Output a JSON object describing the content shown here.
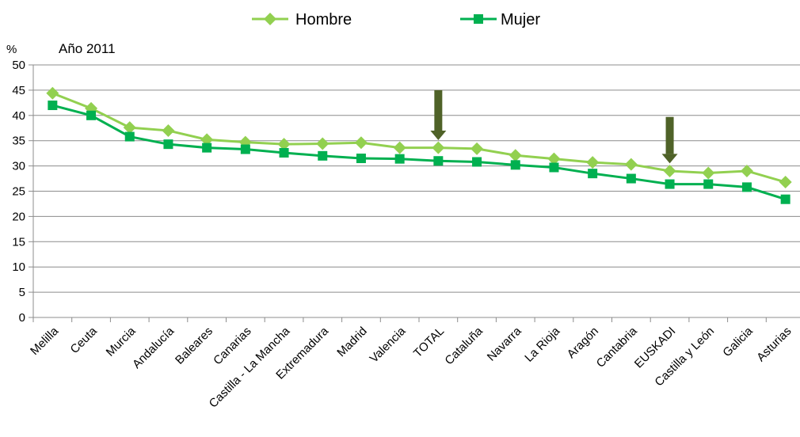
{
  "chart_data": {
    "type": "line",
    "subtitle": "Año 2011",
    "y_unit_label": "%",
    "ylim": [
      0,
      50
    ],
    "y_ticks": [
      0,
      5,
      10,
      15,
      20,
      25,
      30,
      35,
      40,
      45,
      50
    ],
    "grid": "horizontal",
    "legend_position": "top",
    "categories": [
      "Melilla",
      "Ceuta",
      "Murcia",
      "Andalucía",
      "Baleares",
      "Canarias",
      "Castilla - La Mancha",
      "Extremadura",
      "Madrid",
      "Valencia",
      "TOTAL",
      "Cataluña",
      "Navarra",
      "La Rioja",
      "Aragón",
      "Cantabria",
      "EUSKADI",
      "Castilla y León",
      "Galicia",
      "Asturias"
    ],
    "series": [
      {
        "name": "Hombre",
        "color": "#92d050",
        "marker": "diamond",
        "values": [
          44.4,
          41.4,
          37.6,
          37.0,
          35.2,
          34.7,
          34.3,
          34.4,
          34.6,
          33.6,
          33.6,
          33.4,
          32.1,
          31.4,
          30.7,
          30.3,
          29.0,
          28.6,
          29.0,
          26.8
        ]
      },
      {
        "name": "Mujer",
        "color": "#00b050",
        "marker": "square",
        "values": [
          42.0,
          40.0,
          35.8,
          34.3,
          33.6,
          33.3,
          32.6,
          32.0,
          31.5,
          31.4,
          31.0,
          30.8,
          30.2,
          29.7,
          28.5,
          27.5,
          26.4,
          26.4,
          25.8,
          23.4
        ]
      }
    ],
    "annotations": [
      {
        "type": "arrow-down",
        "category": "TOTAL",
        "from_value": 45,
        "to_value": 35.1,
        "color": "#4f6228"
      },
      {
        "type": "arrow-down",
        "category": "EUSKADI",
        "from_value": 39.7,
        "to_value": 30.5,
        "color": "#4f6228"
      }
    ]
  }
}
